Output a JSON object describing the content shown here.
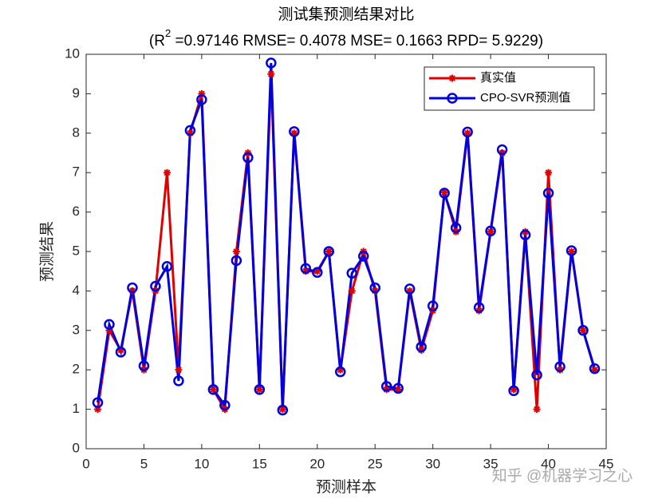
{
  "chart_data": {
    "type": "line",
    "title": "测试集预测结果对比",
    "subtitle": [
      "(R",
      "2",
      " =0.97146 RMSE= 0.4078 MSE= 0.1663 RPD= 5.9229)"
    ],
    "x_label": "预测样本",
    "y_label": "预测结果",
    "x": [
      1,
      2,
      3,
      4,
      5,
      6,
      7,
      8,
      9,
      10,
      11,
      12,
      13,
      14,
      15,
      16,
      17,
      18,
      19,
      20,
      21,
      22,
      23,
      24,
      25,
      26,
      27,
      28,
      29,
      30,
      31,
      32,
      33,
      34,
      35,
      36,
      37,
      38,
      39,
      40,
      41,
      42,
      43,
      44
    ],
    "series": [
      {
        "name": "真实值",
        "color": "#e00000",
        "marker": "asterisk",
        "values": [
          1,
          3,
          2.5,
          4,
          2,
          4,
          7,
          2,
          8,
          9,
          1.5,
          1,
          5,
          7.5,
          1.5,
          9.5,
          1,
          8,
          4.5,
          4.5,
          5,
          2,
          4,
          5,
          4,
          1.5,
          1.5,
          4,
          2.5,
          3.5,
          6.5,
          5.5,
          8,
          3.5,
          5.5,
          7.5,
          1.5,
          5.5,
          1,
          7,
          2,
          5,
          3,
          2
        ]
      },
      {
        "name": "CPO-SVR预测值",
        "color": "#0000e0",
        "marker": "circle",
        "values": [
          1.17,
          3.15,
          2.45,
          4.08,
          2.1,
          4.12,
          4.62,
          1.72,
          8.07,
          8.85,
          1.5,
          1.1,
          4.77,
          7.38,
          1.5,
          9.78,
          0.98,
          8.04,
          4.57,
          4.47,
          5.0,
          1.95,
          4.45,
          4.88,
          4.08,
          1.58,
          1.53,
          4.05,
          2.58,
          3.62,
          6.48,
          5.6,
          8.03,
          3.58,
          5.52,
          7.58,
          1.47,
          5.42,
          1.87,
          6.48,
          2.08,
          5.02,
          3.0,
          2.03
        ]
      }
    ],
    "xlim": [
      0,
      45
    ],
    "xticks": [
      0,
      5,
      10,
      15,
      20,
      25,
      30,
      35,
      40,
      45
    ],
    "ylim": [
      0,
      10
    ],
    "yticks": [
      0,
      1,
      2,
      3,
      4,
      5,
      6,
      7,
      8,
      9,
      10
    ],
    "legend": "northeast",
    "grid": false,
    "watermark": "知乎 @机器学习之心"
  }
}
